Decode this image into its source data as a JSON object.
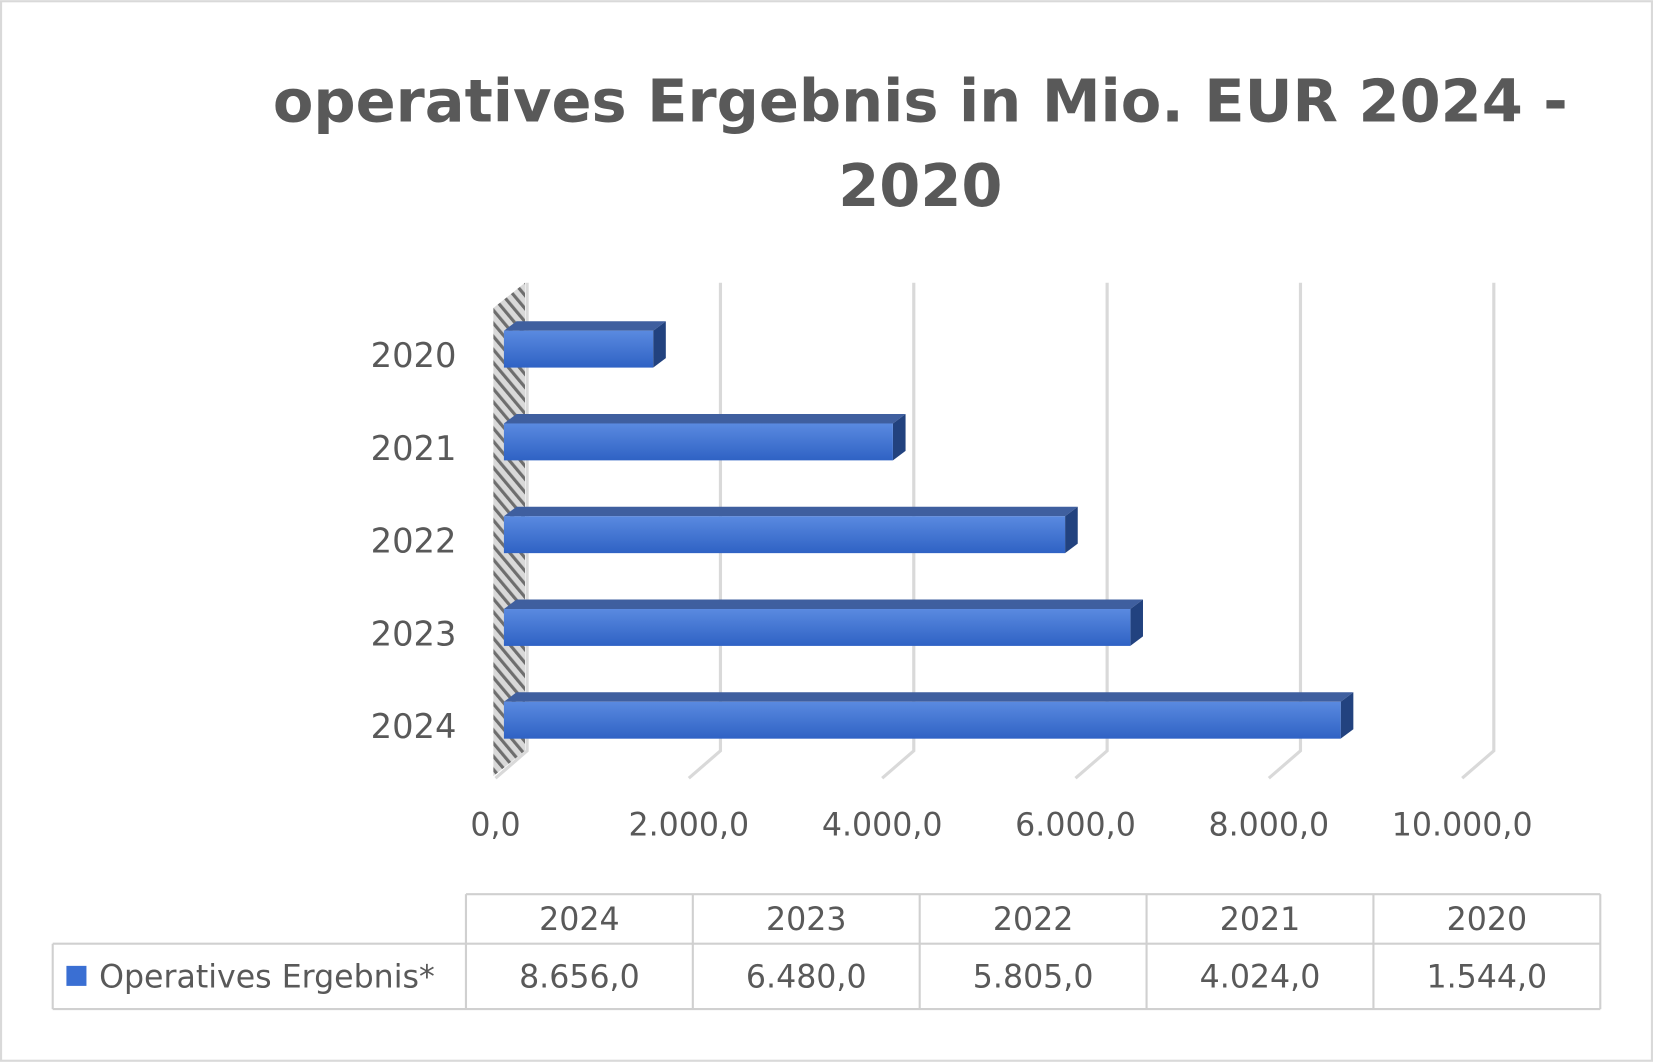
{
  "chart_data": {
    "type": "bar",
    "orientation": "horizontal",
    "title": "operatives Ergebnis in Mio. EUR 2024 - 2020",
    "categories": [
      "2024",
      "2023",
      "2022",
      "2021",
      "2020"
    ],
    "series": [
      {
        "name": "Operatives Ergebnis*",
        "color": "#3a6fd3",
        "values": [
          8656,
          6480,
          5805,
          4024,
          1544
        ],
        "value_labels": [
          "8.656,0",
          "6.480,0",
          "5.805,0",
          "4.024,0",
          "1.544,0"
        ]
      }
    ],
    "xlim": [
      0,
      10000
    ],
    "xticks": [
      {
        "value": 0,
        "label": "0,0"
      },
      {
        "value": 2000,
        "label": "2.000,0"
      },
      {
        "value": 4000,
        "label": "4.000,0"
      },
      {
        "value": 6000,
        "label": "6.000,0"
      },
      {
        "value": 8000,
        "label": "8.000,0"
      },
      {
        "value": 10000,
        "label": "10.000,0"
      }
    ],
    "grid": true,
    "data_table": true
  }
}
